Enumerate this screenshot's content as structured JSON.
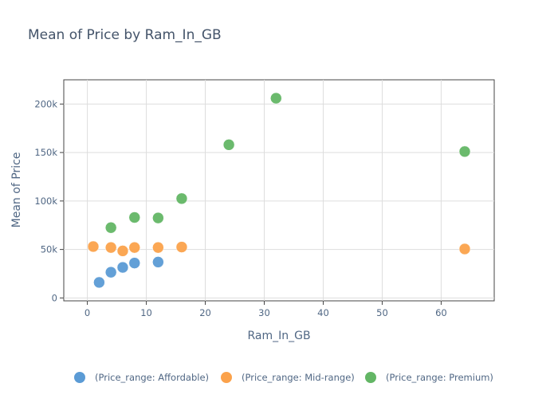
{
  "chart_data": {
    "type": "scatter",
    "title": "Mean of Price by Ram_In_GB",
    "xlabel": "Ram_In_GB",
    "ylabel": "Mean of Price",
    "xlim": [
      -4,
      69
    ],
    "ylim": [
      -3000,
      225000
    ],
    "x_ticks": [
      0,
      10,
      20,
      30,
      40,
      50,
      60
    ],
    "y_ticks": [
      0,
      50000,
      100000,
      150000,
      200000
    ],
    "y_tick_labels": [
      "0",
      "50k",
      "100k",
      "150k",
      "200k"
    ],
    "grid": true,
    "legend_position": "bottom",
    "series": [
      {
        "name": "(Price_range: Affordable)",
        "color": "#5b9bd5",
        "points": [
          [
            2,
            16000
          ],
          [
            4,
            26500
          ],
          [
            6,
            31500
          ],
          [
            8,
            36000
          ],
          [
            12,
            37000
          ]
        ]
      },
      {
        "name": "(Price_range: Mid-range)",
        "color": "#fba24b",
        "points": [
          [
            1,
            53000
          ],
          [
            4,
            52000
          ],
          [
            6,
            48500
          ],
          [
            8,
            52000
          ],
          [
            12,
            52000
          ],
          [
            16,
            52500
          ],
          [
            64,
            50500
          ]
        ]
      },
      {
        "name": "(Price_range: Premium)",
        "color": "#63b665",
        "points": [
          [
            4,
            72500
          ],
          [
            8,
            83000
          ],
          [
            12,
            82500
          ],
          [
            16,
            102500
          ],
          [
            24,
            158000
          ],
          [
            32,
            206000
          ],
          [
            64,
            151000
          ]
        ]
      }
    ]
  }
}
